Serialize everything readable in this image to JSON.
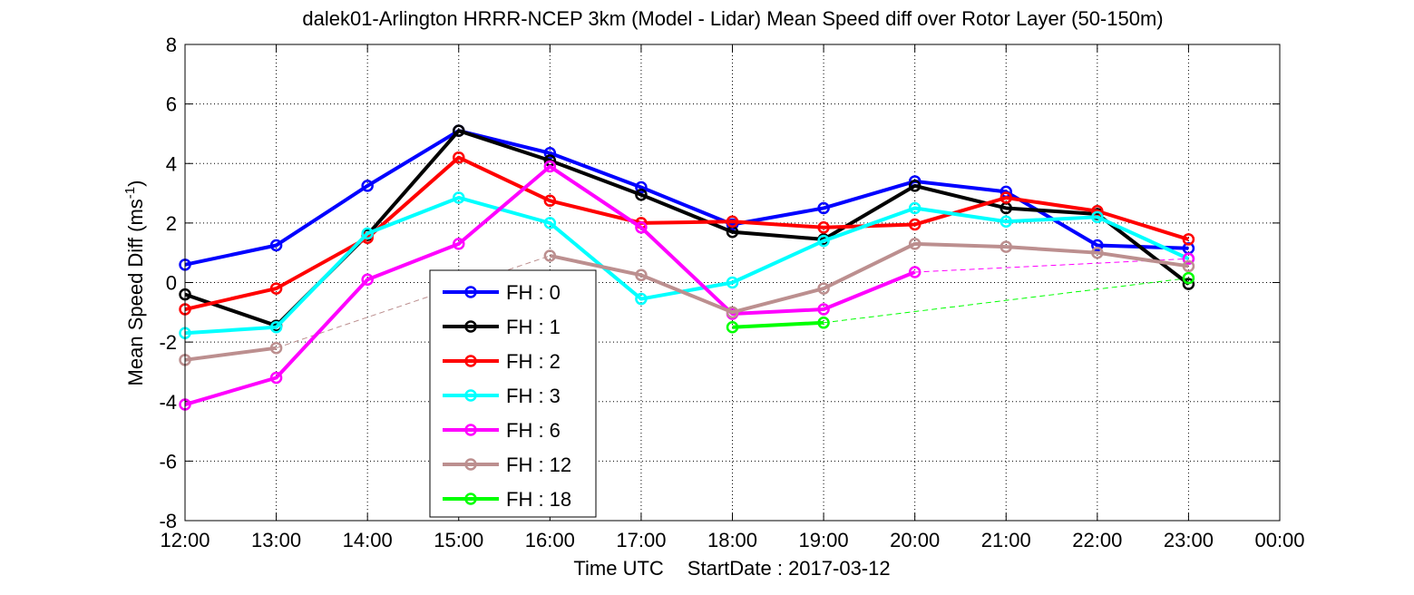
{
  "chart_data": {
    "type": "line",
    "title": "dalek01-Arlington HRRR-NCEP 3km (Model - Lidar) Mean Speed diff over Rotor Layer (50-150m)",
    "xlabel": "Time UTC",
    "xlabel_extra": "StartDate : 2017-03-12",
    "ylabel": "Mean Speed Diff (ms",
    "ylabel_sup": "-1",
    "ylabel_close": ")",
    "ylim": [
      -8,
      8
    ],
    "yticks": [
      "8",
      "6",
      "4",
      "2",
      "0",
      "-2",
      "-4",
      "-6",
      "-8"
    ],
    "categories": [
      "12:00",
      "13:00",
      "14:00",
      "15:00",
      "16:00",
      "17:00",
      "18:00",
      "19:00",
      "20:00",
      "21:00",
      "22:00",
      "23:00",
      "00:00"
    ],
    "grid": true,
    "legend_position": "inside-left",
    "series": [
      {
        "name": "FH : 0",
        "color": "#0000ff",
        "values": [
          0.6,
          1.25,
          3.25,
          5.1,
          4.35,
          3.2,
          1.95,
          2.5,
          3.4,
          3.05,
          1.25,
          1.15,
          null
        ]
      },
      {
        "name": "FH : 1",
        "color": "#000000",
        "values": [
          -0.4,
          -1.45,
          1.6,
          5.1,
          4.1,
          2.95,
          1.7,
          1.45,
          3.25,
          2.5,
          2.3,
          -0.05,
          null
        ]
      },
      {
        "name": "FH : 2",
        "color": "#ff0000",
        "values": [
          -0.9,
          -0.2,
          1.5,
          4.2,
          2.75,
          2.0,
          2.05,
          1.85,
          1.95,
          2.85,
          2.4,
          1.45,
          null
        ]
      },
      {
        "name": "FH : 3",
        "color": "#00ffff",
        "values": [
          -1.7,
          -1.5,
          1.65,
          2.85,
          2.0,
          -0.55,
          0.0,
          1.4,
          2.5,
          2.05,
          2.2,
          0.8,
          null
        ]
      },
      {
        "name": "FH : 6",
        "color": "#ff00ff",
        "values": [
          -4.1,
          -3.2,
          0.1,
          1.3,
          3.9,
          1.85,
          -1.05,
          -0.9,
          0.35,
          null,
          null,
          0.8,
          null
        ]
      },
      {
        "name": "FH : 12",
        "color": "#bc8f8f",
        "values": [
          -2.6,
          -2.2,
          null,
          null,
          0.9,
          0.25,
          -1.0,
          -0.2,
          1.3,
          1.2,
          1.0,
          0.55,
          null
        ]
      },
      {
        "name": "FH : 18",
        "color": "#00ff00",
        "values": [
          null,
          null,
          null,
          null,
          null,
          null,
          -1.5,
          -1.35,
          null,
          null,
          null,
          0.15,
          null
        ]
      }
    ]
  }
}
